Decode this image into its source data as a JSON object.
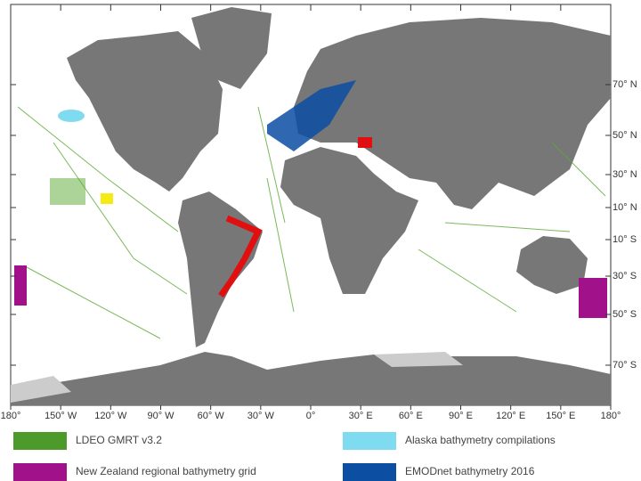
{
  "map": {
    "longitude_labels": [
      "180°",
      "150° W",
      "120° W",
      "90° W",
      "60° W",
      "30° W",
      "0°",
      "30° E",
      "60° E",
      "90° E",
      "120° E",
      "150° E",
      "180°"
    ],
    "latitude_labels": [
      "70° N",
      "50° N",
      "30° N",
      "10° N",
      "10° S",
      "30° S",
      "50° S",
      "70° S"
    ],
    "legend": [
      {
        "label": "LDEO GMRT v3.2",
        "color": "#4c9a2a"
      },
      {
        "label": "Alaska bathymetry compilations",
        "color": "#7fdcf0"
      },
      {
        "label": "New Zealand regional bathymetry grid",
        "color": "#a0118a"
      },
      {
        "label": "EMODnet bathymetry 2016",
        "color": "#0b4ea2"
      }
    ]
  }
}
